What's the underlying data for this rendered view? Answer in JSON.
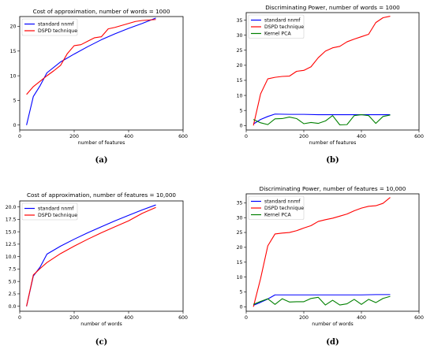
{
  "chart_data": [
    {
      "type": "line",
      "title": "Cost of approximation, number of words = 1000",
      "xlabel": "number of features",
      "ylabel": "",
      "xlim": [
        0,
        600
      ],
      "ylim": [
        -1,
        22
      ],
      "xticks": [
        0,
        200,
        400,
        600
      ],
      "yticks": [
        0,
        5,
        10,
        15,
        20
      ],
      "ytick_labels": [
        "0",
        "5",
        "10",
        "15",
        "20"
      ],
      "legend_position": "top-left",
      "caption": "(a)",
      "series": [
        {
          "name": "standard nnmf",
          "color": "#0000ff",
          "x": [
            25,
            50,
            75,
            100,
            150,
            200,
            250,
            300,
            350,
            400,
            450,
            500
          ],
          "y": [
            0,
            5.8,
            8.0,
            10.6,
            12.8,
            14.4,
            15.9,
            17.3,
            18.5,
            19.6,
            20.6,
            21.7
          ]
        },
        {
          "name": "DSPD technique",
          "color": "#ff0000",
          "x": [
            25,
            50,
            75,
            100,
            125,
            150,
            175,
            200,
            225,
            250,
            275,
            300,
            325,
            350,
            375,
            400,
            425,
            450,
            475,
            500
          ],
          "y": [
            6.2,
            7.8,
            8.9,
            10.0,
            11.0,
            12.1,
            14.5,
            16.1,
            16.3,
            17.0,
            17.7,
            17.9,
            19.5,
            19.8,
            20.2,
            20.6,
            21.0,
            21.2,
            21.3,
            21.4
          ]
        }
      ]
    },
    {
      "type": "line",
      "title": "Discriminating Power, number of words = 1000",
      "xlabel": "number of features",
      "ylabel": "",
      "xlim": [
        0,
        600
      ],
      "ylim": [
        -1.5,
        37.5
      ],
      "xticks": [
        0,
        200,
        400,
        600
      ],
      "yticks": [
        0,
        5,
        10,
        15,
        20,
        25,
        30,
        35
      ],
      "ytick_labels": [
        "0",
        "5",
        "10",
        "15",
        "20",
        "25",
        "30",
        "35"
      ],
      "legend_position": "top-left",
      "caption": "(b)",
      "series": [
        {
          "name": "standard nnmf",
          "color": "#0000ff",
          "x": [
            25,
            50,
            75,
            100,
            150,
            200,
            250,
            300,
            350,
            400,
            450,
            500
          ],
          "y": [
            0.5,
            2.0,
            3.0,
            3.8,
            3.7,
            3.7,
            3.6,
            3.6,
            3.6,
            3.6,
            3.6,
            3.6
          ]
        },
        {
          "name": "DSPD technique",
          "color": "#ff0000",
          "x": [
            25,
            50,
            75,
            100,
            125,
            150,
            175,
            200,
            225,
            250,
            275,
            300,
            325,
            350,
            375,
            400,
            425,
            450,
            475,
            500
          ],
          "y": [
            0.0,
            10.5,
            15.5,
            16.0,
            16.3,
            16.4,
            18.0,
            18.3,
            19.5,
            22.5,
            24.7,
            25.8,
            26.3,
            27.8,
            28.7,
            29.5,
            30.3,
            34.2,
            35.8,
            36.3
          ]
        },
        {
          "name": "Kernel PCA",
          "color": "#008000",
          "x": [
            25,
            50,
            75,
            100,
            125,
            150,
            175,
            200,
            225,
            250,
            275,
            300,
            325,
            350,
            375,
            400,
            425,
            450,
            475,
            500
          ],
          "y": [
            2.0,
            0.9,
            0.3,
            2.2,
            2.3,
            2.8,
            2.3,
            0.6,
            1.0,
            0.7,
            1.5,
            3.3,
            0.2,
            0.3,
            3.3,
            3.6,
            3.3,
            0.7,
            3.0,
            3.5
          ]
        }
      ]
    },
    {
      "type": "line",
      "title": "Cost of approximation, number of features = 10,000",
      "xlabel": "number of words",
      "ylabel": "",
      "xlim": [
        0,
        600
      ],
      "ylim": [
        -1,
        21.2
      ],
      "xticks": [
        0,
        200,
        400,
        600
      ],
      "yticks": [
        0,
        2.5,
        5,
        7.5,
        10,
        12.5,
        15,
        17.5,
        20
      ],
      "ytick_labels": [
        "0.0",
        "2.5",
        "5.0",
        "7.5",
        "10.0",
        "12.5",
        "15.0",
        "17.5",
        "20.0"
      ],
      "legend_position": "top-left",
      "caption": "(c)",
      "series": [
        {
          "name": "standard nnmf",
          "color": "#0000ff",
          "x": [
            25,
            50,
            75,
            100,
            150,
            200,
            250,
            300,
            350,
            400,
            450,
            500
          ],
          "y": [
            0,
            6.1,
            7.9,
            10.5,
            12.1,
            13.5,
            14.8,
            16.0,
            17.2,
            18.3,
            19.4,
            20.4
          ]
        },
        {
          "name": "DSPD technique",
          "color": "#ff0000",
          "x": [
            25,
            50,
            75,
            100,
            150,
            200,
            250,
            300,
            350,
            400,
            450,
            500
          ],
          "y": [
            0,
            6.3,
            7.6,
            8.8,
            10.6,
            12.1,
            13.5,
            14.8,
            16.0,
            17.2,
            18.7,
            19.9
          ]
        }
      ]
    },
    {
      "type": "line",
      "title": "Discriminating Power, number of features = 10,000",
      "xlabel": "number of words",
      "ylabel": "",
      "xlim": [
        0,
        600
      ],
      "ylim": [
        -1.5,
        38
      ],
      "xticks": [
        0,
        200,
        400,
        600
      ],
      "yticks": [
        0,
        5,
        10,
        15,
        20,
        25,
        30,
        35
      ],
      "ytick_labels": [
        "0",
        "5",
        "10",
        "15",
        "20",
        "25",
        "30",
        "35"
      ],
      "legend_position": "top-left",
      "caption": "(d)",
      "series": [
        {
          "name": "standard nnmf",
          "color": "#0000ff",
          "x": [
            25,
            50,
            75,
            100,
            150,
            200,
            250,
            300,
            350,
            400,
            450,
            500
          ],
          "y": [
            0.5,
            1.5,
            2.6,
            4.0,
            4.0,
            4.0,
            4.0,
            4.0,
            4.0,
            4.0,
            4.1,
            4.1
          ]
        },
        {
          "name": "DSPD technique",
          "color": "#ff0000",
          "x": [
            25,
            50,
            75,
            100,
            125,
            150,
            175,
            200,
            225,
            250,
            275,
            300,
            325,
            350,
            375,
            400,
            425,
            450,
            475,
            500
          ],
          "y": [
            0.0,
            9.5,
            20.5,
            24.5,
            24.8,
            25.0,
            25.6,
            26.5,
            27.3,
            28.7,
            29.3,
            29.8,
            30.5,
            31.2,
            32.3,
            33.2,
            33.8,
            34.0,
            34.8,
            36.8
          ]
        },
        {
          "name": "Kernel PCA",
          "color": "#008000",
          "x": [
            25,
            50,
            75,
            100,
            125,
            150,
            175,
            200,
            225,
            250,
            275,
            300,
            325,
            350,
            375,
            400,
            425,
            450,
            475,
            500
          ],
          "y": [
            0.8,
            1.8,
            2.7,
            0.8,
            2.7,
            1.6,
            1.7,
            1.7,
            2.8,
            3.2,
            0.6,
            2.2,
            0.6,
            1.0,
            2.5,
            0.8,
            2.5,
            1.4,
            2.8,
            3.5
          ]
        }
      ]
    }
  ]
}
